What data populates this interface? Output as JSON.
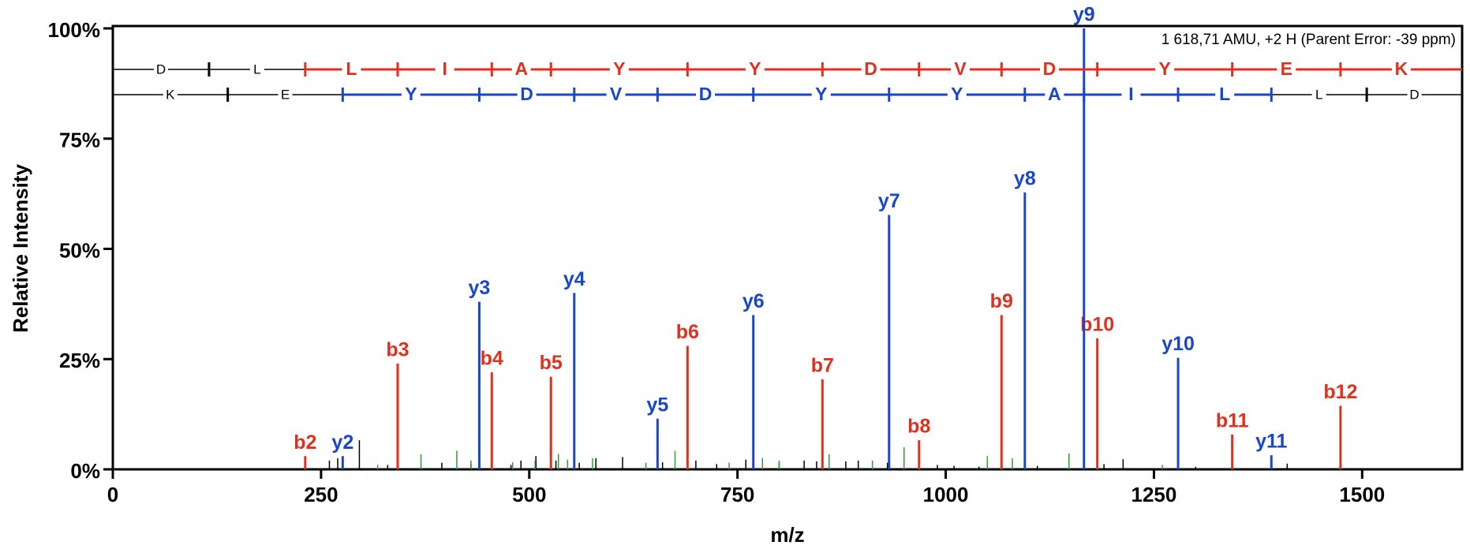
{
  "chart_data": {
    "type": "spectrum",
    "annotation": "1 618,71 AMU, +2 H (Parent Error: -39 ppm)",
    "x_label": "m/z",
    "y_label": "Relative Intensity",
    "xlim": [
      0,
      1620
    ],
    "ylim": [
      0,
      100
    ],
    "xticks": [
      0,
      250,
      500,
      750,
      1000,
      1250,
      1500
    ],
    "yticks": [
      {
        "value": 0,
        "label": "0%"
      },
      {
        "value": 25,
        "label": "25%"
      },
      {
        "value": 50,
        "label": "50%"
      },
      {
        "value": 75,
        "label": "75%"
      },
      {
        "value": 100,
        "label": "100%"
      }
    ],
    "series": [
      {
        "color": "#e0301e",
        "x": [
          231,
          342,
          455,
          526,
          690,
          852,
          968,
          1067,
          1182,
          1344,
          1474
        ],
        "values": [
          3,
          24,
          22,
          21,
          28,
          20.4,
          6.6,
          35,
          29.7,
          7.9,
          14.4
        ],
        "labels": [
          "b2",
          "b3",
          "b4",
          "b5",
          "b6",
          "b7",
          "b8",
          "b9",
          "b10",
          "b11",
          "b12"
        ]
      },
      {
        "color": "#1a47c8",
        "x": [
          276,
          440,
          554,
          654,
          769,
          932,
          1095,
          1166,
          1279,
          1391
        ],
        "values": [
          3,
          38,
          40,
          11.5,
          35,
          57.7,
          62.8,
          100,
          25.3,
          3.2
        ],
        "labels": [
          "y2",
          "y3",
          "y4",
          "y5",
          "y6",
          "y7",
          "y8",
          "y9",
          "y10",
          "y11"
        ]
      },
      {
        "color": "#000000",
        "x": [
          260,
          270,
          296,
          330,
          395,
          430,
          478,
          490,
          508,
          532,
          560,
          580,
          612,
          660,
          700,
          725,
          760,
          800,
          830,
          845,
          880,
          895,
          930,
          990,
          1010,
          1040,
          1110,
          1190,
          1213,
          1300,
          1410
        ],
        "values": [
          2,
          2.5,
          6.6,
          1,
          1.5,
          1.2,
          1,
          2,
          3,
          2,
          1.5,
          2.5,
          2.8,
          1.6,
          2,
          1.2,
          2.2,
          1.5,
          2,
          1.8,
          1.8,
          2,
          1.5,
          1,
          0.8,
          0.6,
          0.8,
          1.2,
          2.3,
          0.6,
          1.3
        ]
      },
      {
        "color": "#2ca02c",
        "x": [
          318,
          370,
          413,
          430,
          480,
          507,
          535,
          546,
          576,
          640,
          675,
          740,
          780,
          800,
          860,
          912,
          950,
          1050,
          1080,
          1148,
          1260
        ],
        "values": [
          1,
          3.4,
          4.2,
          2,
          1.6,
          2,
          3.5,
          2.2,
          2.5,
          1.5,
          4.2,
          1.5,
          2.6,
          2,
          3.4,
          2,
          5,
          3,
          2.5,
          3.6,
          1
        ]
      }
    ],
    "ladders": [
      [
        "D",
        "L",
        "L",
        "I",
        "A",
        "Y",
        "Y",
        "D",
        "V",
        "D",
        "Y",
        "E",
        "K"
      ],
      [
        "K",
        "E",
        "Y",
        "D",
        "V",
        "D",
        "Y",
        "Y",
        "A",
        "I",
        "L",
        "L",
        "D"
      ]
    ]
  }
}
